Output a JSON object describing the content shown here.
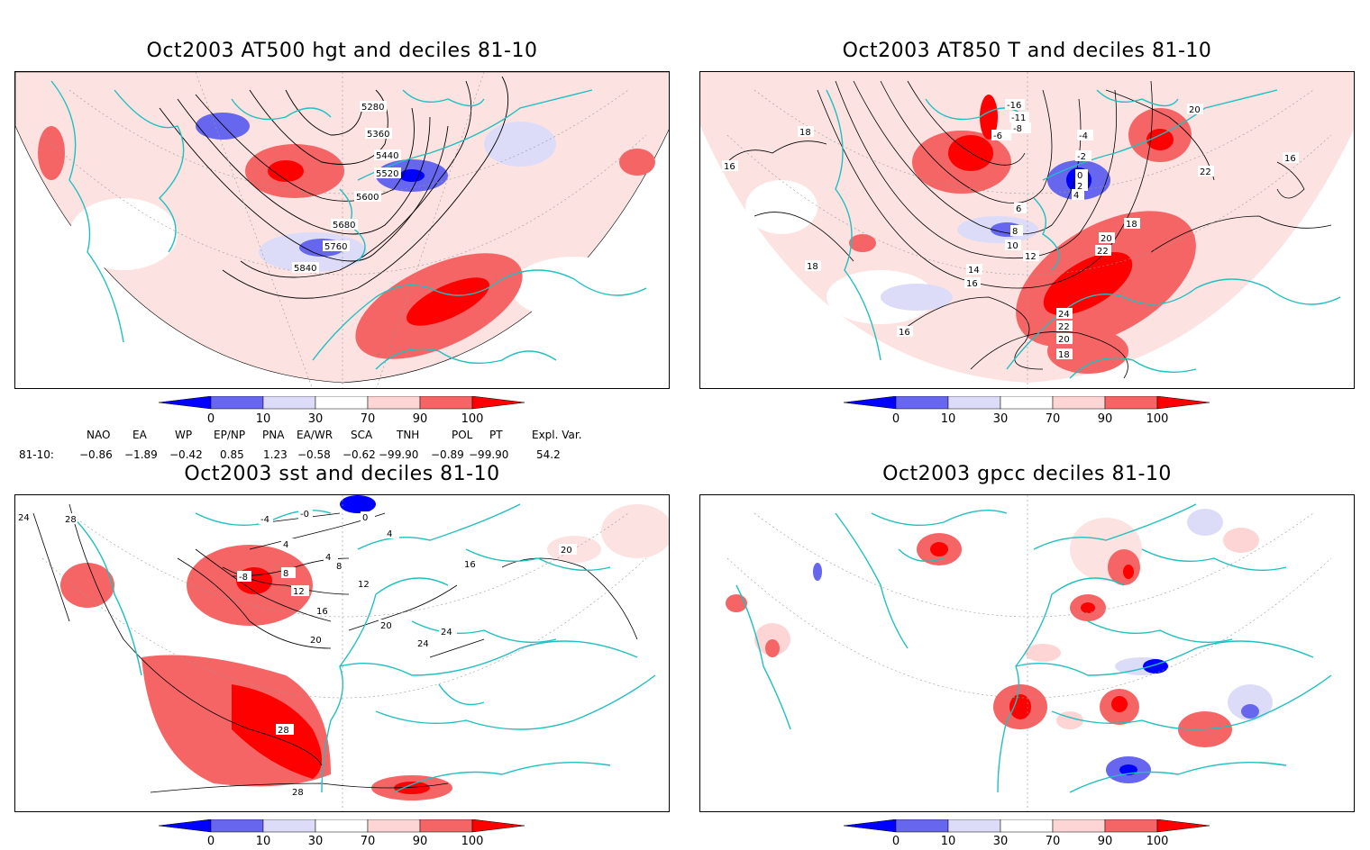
{
  "panels": [
    {
      "title": "Oct2003 AT500 hgt and deciles 81-10",
      "contour_labels": [
        "5280",
        "5360",
        "5440",
        "5520",
        "5600",
        "5680",
        "5760",
        "5840"
      ]
    },
    {
      "title": "Oct2003 AT850 T and deciles 81-10",
      "contour_labels": [
        "18",
        "16",
        "-16",
        "-11",
        "-8",
        "-6",
        "-4",
        "-2",
        "0",
        "2",
        "4",
        "6",
        "8",
        "10",
        "12",
        "14",
        "16",
        "18",
        "20",
        "22",
        "24",
        "22",
        "20",
        "18",
        "16",
        "18",
        "22",
        "20",
        "16"
      ]
    },
    {
      "title": "Oct2003 sst and deciles 81-10",
      "contour_labels": [
        "24",
        "28",
        "-0",
        "-4",
        "-8",
        "0",
        "4",
        "4",
        "8",
        "12",
        "4",
        "8",
        "16",
        "20",
        "20",
        "24",
        "24",
        "28",
        "28",
        "12",
        "16",
        "20"
      ]
    },
    {
      "title": "Oct2003 gpcc deciles 81-10",
      "contour_labels": []
    }
  ],
  "colorbar": {
    "ticks": [
      "0",
      "10",
      "30",
      "70",
      "90",
      "100"
    ],
    "colors": [
      "#0000ff",
      "#6666ee",
      "#dcdcf8",
      "#ffffff",
      "#fdd5d5",
      "#f56565",
      "#ff0000"
    ]
  },
  "indices": {
    "headers": [
      "NAO",
      "EA",
      "WP",
      "EP/NP",
      "PNA",
      "EA/WR",
      "SCA",
      "TNH",
      "POL",
      "PT",
      "Expl. Var."
    ],
    "row_label": "81-10:",
    "values": [
      "−0.86",
      "−1.89",
      "−0.42",
      "0.85",
      "1.23",
      "−0.58",
      "−0.62",
      "−99.90",
      "−0.89",
      "−99.90",
      "54.2"
    ]
  },
  "colors": {
    "coast": "#20c0c0",
    "positive": "#ff0000",
    "negative": "#0000ff"
  }
}
